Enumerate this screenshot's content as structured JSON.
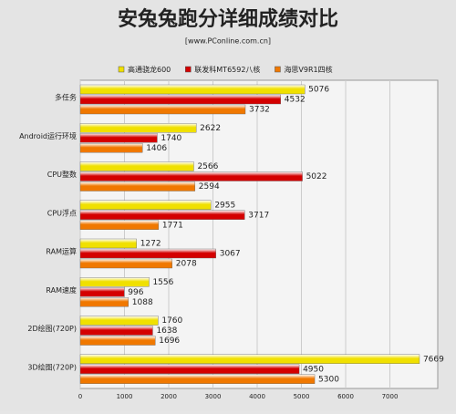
{
  "chart_data": {
    "type": "barh",
    "title": "安兔兔跑分详细成绩对比",
    "subtitle": "[www.PConline.com.cn]",
    "categories": [
      "多任务",
      "Android运行环境",
      "CPU整数",
      "CPU浮点",
      "RAM运算",
      "RAM速度",
      "2D绘图(720P)",
      "3D绘图(720P)"
    ],
    "series": [
      {
        "name": "高通骁龙600",
        "color": "#f0e000",
        "values": [
          5076,
          2622,
          2566,
          2955,
          1272,
          1556,
          1760,
          7669
        ]
      },
      {
        "name": "联发科MT6592八核",
        "color": "#d40000",
        "values": [
          4532,
          1740,
          5022,
          3717,
          3067,
          996,
          1638,
          4950
        ]
      },
      {
        "name": "海思V9R1四核",
        "color": "#f07800",
        "values": [
          3732,
          1406,
          2594,
          1771,
          2078,
          1088,
          1696,
          5300
        ]
      }
    ],
    "xlim": [
      0,
      8000
    ],
    "xticks": [
      0,
      1000,
      2000,
      3000,
      4000,
      5000,
      6000,
      7000
    ],
    "grid": true
  }
}
